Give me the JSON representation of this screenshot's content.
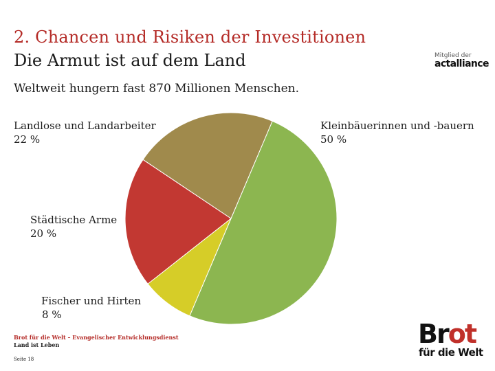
{
  "header": {
    "title_line1": "2. Chancen und Risiken der Investitionen",
    "title_line2": "Die Armut ist auf dem Land",
    "subtitle": "Weltweit hungern fast 870 Millionen Menschen."
  },
  "member_logo": {
    "prefix": "Mitglied der",
    "brand": "actalliance"
  },
  "chart_data": {
    "type": "pie",
    "slices": [
      {
        "label": "Kleinbäuerinnen und -bauern",
        "value_text": "50 %",
        "value": 50,
        "color": "#8cb650"
      },
      {
        "label": "Fischer und Hirten",
        "value_text": "8 %",
        "value": 8,
        "color": "#d6cd28"
      },
      {
        "label": "Städtische Arme",
        "value_text": "20 %",
        "value": 20,
        "color": "#c23832"
      },
      {
        "label": "Landlose und Landarbeiter",
        "value_text": "22 %",
        "value": 22,
        "color": "#a08a4c"
      }
    ]
  },
  "footer": {
    "org": "Brot für die Welt – Evangelischer Entwicklungsdienst",
    "line2": "Land ist Leben",
    "page": "Seite 18"
  },
  "brand_logo": {
    "word_main": "Br",
    "word_accent": "ot",
    "sub": "für die Welt"
  }
}
